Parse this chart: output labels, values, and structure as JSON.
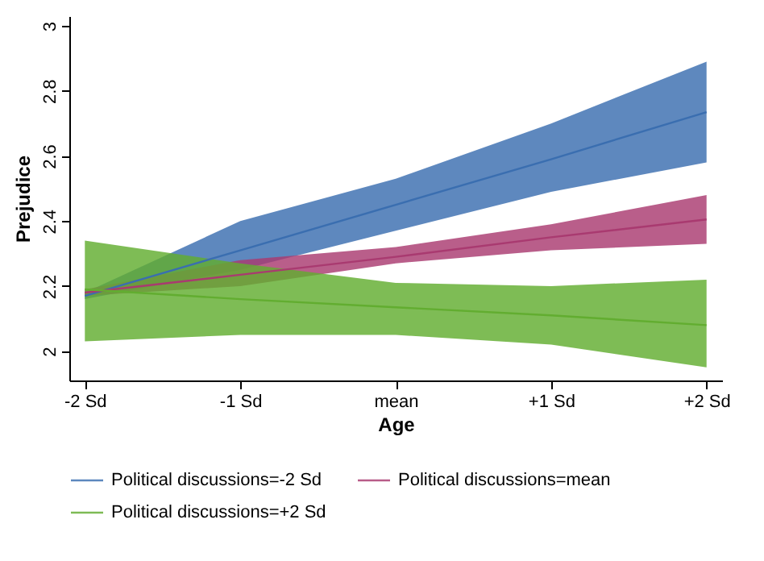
{
  "chart_data": {
    "type": "line",
    "xlabel": "Age",
    "ylabel": "Prejudice",
    "categories": [
      "-2 Sd",
      "-1 Sd",
      "mean",
      "+1 Sd",
      "+2 Sd"
    ],
    "ylim": [
      1.91,
      3.03
    ],
    "yticks": [
      2,
      2.2,
      2.4,
      2.6,
      2.8,
      3
    ],
    "grid": false,
    "legend": "bottom",
    "marker": "none",
    "series": [
      {
        "name": "Political discussions=-2 Sd",
        "color": "#3a6eb0",
        "values": [
          2.17,
          2.31,
          2.45,
          2.59,
          2.735
        ],
        "lower": [
          2.16,
          2.25,
          2.37,
          2.49,
          2.58
        ],
        "upper": [
          2.18,
          2.4,
          2.53,
          2.7,
          2.89
        ]
      },
      {
        "name": "Political discussions=mean",
        "color": "#a93a70",
        "values": [
          2.18,
          2.235,
          2.29,
          2.35,
          2.405
        ],
        "lower": [
          2.17,
          2.2,
          2.27,
          2.31,
          2.33
        ],
        "upper": [
          2.19,
          2.28,
          2.32,
          2.39,
          2.48
        ]
      },
      {
        "name": "Political discussions=+2 Sd",
        "color": "#62ad30",
        "values": [
          2.19,
          2.16,
          2.135,
          2.11,
          2.08
        ],
        "lower": [
          2.03,
          2.05,
          2.05,
          2.02,
          1.95
        ],
        "upper": [
          2.34,
          2.27,
          2.21,
          2.2,
          2.22
        ]
      }
    ]
  }
}
